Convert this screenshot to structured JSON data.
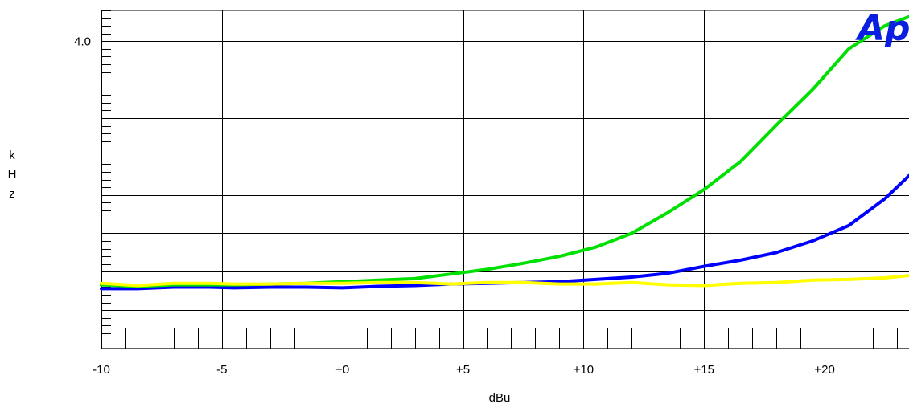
{
  "chart_data": {
    "type": "line",
    "title": "",
    "xlabel": "dBu",
    "ylabel": "kHz",
    "xlim": [
      -10,
      23.5
    ],
    "ylim": [
      0,
      4.4
    ],
    "x_tick_labels": [
      "-10",
      "-5",
      "+0",
      "+5",
      "+10",
      "+15",
      "+20"
    ],
    "x_tick_values": [
      -10,
      -5,
      0,
      5,
      10,
      15,
      20
    ],
    "y_tick_labels": [
      {
        "value": 4.0,
        "label": "4.0"
      }
    ],
    "grid": true,
    "legend": "none",
    "series": [
      {
        "color": "#0000ff",
        "x": [
          -10,
          -8.5,
          -7,
          -5.5,
          -4.5,
          -3,
          -1.5,
          0,
          1.5,
          3,
          4.5,
          6,
          7.5,
          9,
          10.5,
          12,
          13.5,
          15,
          16.5,
          18,
          19.5,
          21,
          22.5,
          23.5
        ],
        "y": [
          0.78,
          0.78,
          0.8,
          0.8,
          0.79,
          0.8,
          0.8,
          0.79,
          0.81,
          0.82,
          0.84,
          0.85,
          0.86,
          0.87,
          0.9,
          0.93,
          0.98,
          1.07,
          1.15,
          1.25,
          1.4,
          1.6,
          1.95,
          2.25
        ]
      },
      {
        "color": "#00e000",
        "x": [
          -10,
          -8.5,
          -7,
          -5.5,
          -4.5,
          -3,
          -1.5,
          0,
          1.5,
          3,
          4.5,
          6,
          7.5,
          9,
          10.5,
          12,
          13.5,
          15,
          16.5,
          18,
          19.5,
          21,
          22.5,
          23.5
        ],
        "y": [
          0.83,
          0.81,
          0.83,
          0.83,
          0.83,
          0.84,
          0.85,
          0.87,
          0.89,
          0.91,
          0.97,
          1.03,
          1.11,
          1.2,
          1.32,
          1.5,
          1.77,
          2.07,
          2.43,
          2.91,
          3.37,
          3.9,
          4.2,
          4.32
        ]
      },
      {
        "color": "#ffff00",
        "x": [
          -10,
          -8.5,
          -7,
          -5.5,
          -4.5,
          -3,
          -1.5,
          0,
          1.5,
          3,
          4.5,
          6,
          7.5,
          9,
          10.5,
          12,
          13.5,
          15,
          16.5,
          18,
          19.5,
          21,
          22.5,
          23.5
        ],
        "y": [
          0.85,
          0.82,
          0.85,
          0.85,
          0.84,
          0.84,
          0.85,
          0.85,
          0.86,
          0.86,
          0.84,
          0.86,
          0.86,
          0.84,
          0.84,
          0.86,
          0.83,
          0.82,
          0.85,
          0.86,
          0.89,
          0.9,
          0.92,
          0.95
        ]
      }
    ]
  },
  "logo": {
    "text": "Ap",
    "color": "#0a1fe0"
  }
}
